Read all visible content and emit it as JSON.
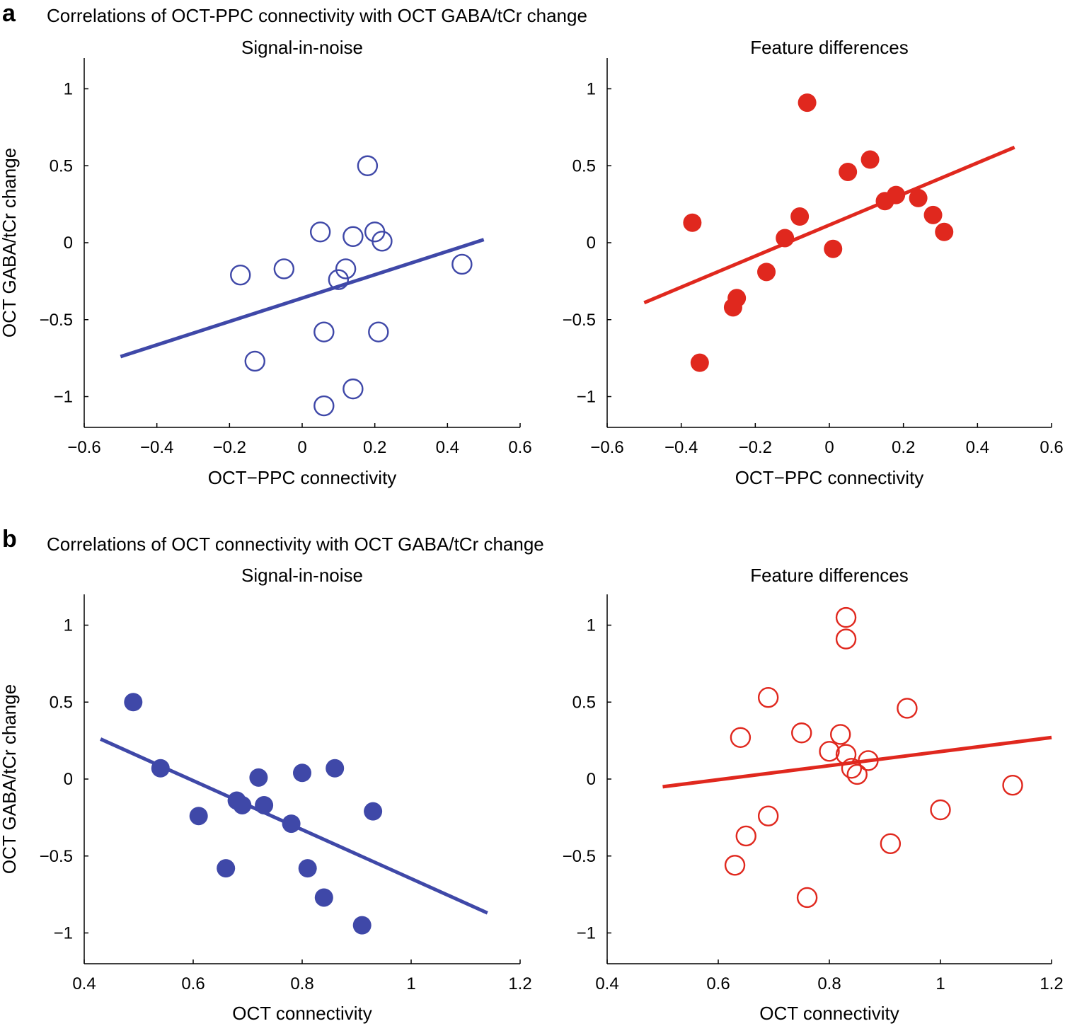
{
  "panels": [
    {
      "letter": "a",
      "title": "Correlations of OCT-PPC connectivity with OCT GABA/tCr change"
    },
    {
      "letter": "b",
      "title": "Correlations of OCT connectivity with OCT GABA/tCr change"
    }
  ],
  "chart_data": [
    {
      "type": "scatter",
      "title": "Signal-in-noise",
      "xlabel": "OCT−PPC connectivity",
      "ylabel": "OCT GABA/tCr change",
      "xlim": [
        -0.6,
        0.6
      ],
      "ylim": [
        -1.2,
        1.2
      ],
      "xticks": [
        -0.6,
        -0.4,
        -0.2,
        0,
        0.2,
        0.4,
        0.6
      ],
      "xtick_labels": [
        "−0.6",
        "−0.4",
        "−0.2",
        "0",
        "0.2",
        "0.4",
        "0.6"
      ],
      "yticks": [
        -1,
        -0.5,
        0,
        0.5,
        1
      ],
      "ytick_labels": [
        "−1",
        "−0.5",
        "0",
        "0.5",
        "1"
      ],
      "color": "#3f48a8",
      "marker": "open",
      "points": [
        {
          "x": 0.18,
          "y": 0.5
        },
        {
          "x": 0.05,
          "y": 0.07
        },
        {
          "x": 0.14,
          "y": 0.04
        },
        {
          "x": 0.2,
          "y": 0.07
        },
        {
          "x": 0.22,
          "y": 0.01
        },
        {
          "x": -0.17,
          "y": -0.21
        },
        {
          "x": -0.05,
          "y": -0.17
        },
        {
          "x": 0.12,
          "y": -0.17
        },
        {
          "x": 0.1,
          "y": -0.24
        },
        {
          "x": 0.44,
          "y": -0.14
        },
        {
          "x": 0.06,
          "y": -0.58
        },
        {
          "x": 0.21,
          "y": -0.58
        },
        {
          "x": -0.13,
          "y": -0.77
        },
        {
          "x": 0.14,
          "y": -0.95
        },
        {
          "x": 0.06,
          "y": -1.06
        }
      ],
      "fit": {
        "x": [
          -0.5,
          0.5
        ],
        "y": [
          -0.74,
          0.02
        ]
      }
    },
    {
      "type": "scatter",
      "title": "Feature differences",
      "xlabel": "OCT−PPC connectivity",
      "ylabel": "",
      "xlim": [
        -0.6,
        0.6
      ],
      "ylim": [
        -1.2,
        1.2
      ],
      "xticks": [
        -0.6,
        -0.4,
        -0.2,
        0,
        0.2,
        0.4,
        0.6
      ],
      "xtick_labels": [
        "−0.6",
        "−0.4",
        "−0.2",
        "0",
        "0.2",
        "0.4",
        "0.6"
      ],
      "yticks": [
        -1,
        -0.5,
        0,
        0.5,
        1
      ],
      "ytick_labels": [
        "−1",
        "−0.5",
        "0",
        "0.5",
        "1"
      ],
      "color": "#e0281e",
      "marker": "filled",
      "points": [
        {
          "x": -0.06,
          "y": 0.91
        },
        {
          "x": 0.11,
          "y": 0.54
        },
        {
          "x": 0.05,
          "y": 0.46
        },
        {
          "x": -0.08,
          "y": 0.17
        },
        {
          "x": -0.12,
          "y": 0.03
        },
        {
          "x": 0.15,
          "y": 0.27
        },
        {
          "x": 0.18,
          "y": 0.31
        },
        {
          "x": 0.24,
          "y": 0.29
        },
        {
          "x": 0.28,
          "y": 0.18
        },
        {
          "x": 0.31,
          "y": 0.07
        },
        {
          "x": -0.37,
          "y": 0.13
        },
        {
          "x": 0.01,
          "y": -0.04
        },
        {
          "x": -0.17,
          "y": -0.19
        },
        {
          "x": -0.25,
          "y": -0.36
        },
        {
          "x": -0.26,
          "y": -0.42
        },
        {
          "x": -0.35,
          "y": -0.78
        }
      ],
      "fit": {
        "x": [
          -0.5,
          0.5
        ],
        "y": [
          -0.39,
          0.62
        ]
      }
    },
    {
      "type": "scatter",
      "title": "Signal-in-noise",
      "xlabel": "OCT connectivity",
      "ylabel": "OCT GABA/tCr change",
      "xlim": [
        0.4,
        1.2
      ],
      "ylim": [
        -1.2,
        1.2
      ],
      "xticks": [
        0.4,
        0.6,
        0.8,
        1.0,
        1.2
      ],
      "xtick_labels": [
        "0.4",
        "0.6",
        "0.8",
        "1",
        "1.2"
      ],
      "yticks": [
        -1,
        -0.5,
        0,
        0.5,
        1
      ],
      "ytick_labels": [
        "−1",
        "−0.5",
        "0",
        "0.5",
        "1"
      ],
      "color": "#3f48a8",
      "marker": "filled",
      "points": [
        {
          "x": 0.49,
          "y": 0.5
        },
        {
          "x": 0.54,
          "y": 0.07
        },
        {
          "x": 0.61,
          "y": -0.24
        },
        {
          "x": 0.66,
          "y": -0.58
        },
        {
          "x": 0.68,
          "y": -0.14
        },
        {
          "x": 0.69,
          "y": -0.17
        },
        {
          "x": 0.72,
          "y": 0.01
        },
        {
          "x": 0.73,
          "y": -0.17
        },
        {
          "x": 0.78,
          "y": -0.29
        },
        {
          "x": 0.8,
          "y": 0.04
        },
        {
          "x": 0.81,
          "y": -0.58
        },
        {
          "x": 0.84,
          "y": -0.77
        },
        {
          "x": 0.86,
          "y": 0.07
        },
        {
          "x": 0.91,
          "y": -0.95
        },
        {
          "x": 0.93,
          "y": -0.21
        }
      ],
      "fit": {
        "x": [
          0.43,
          1.14
        ],
        "y": [
          0.26,
          -0.87
        ]
      }
    },
    {
      "type": "scatter",
      "title": "Feature differences",
      "xlabel": "OCT connectivity",
      "ylabel": "",
      "xlim": [
        0.4,
        1.2
      ],
      "ylim": [
        -1.2,
        1.2
      ],
      "xticks": [
        0.4,
        0.6,
        0.8,
        1.0,
        1.2
      ],
      "xtick_labels": [
        "0.4",
        "0.6",
        "0.8",
        "1",
        "1.2"
      ],
      "yticks": [
        -1,
        -0.5,
        0,
        0.5,
        1
      ],
      "ytick_labels": [
        "−1",
        "−0.5",
        "0",
        "0.5",
        "1"
      ],
      "color": "#e0281e",
      "marker": "open",
      "points": [
        {
          "x": 0.83,
          "y": 1.05
        },
        {
          "x": 0.83,
          "y": 0.91
        },
        {
          "x": 0.69,
          "y": 0.53
        },
        {
          "x": 0.94,
          "y": 0.46
        },
        {
          "x": 0.64,
          "y": 0.27
        },
        {
          "x": 0.75,
          "y": 0.3
        },
        {
          "x": 0.82,
          "y": 0.29
        },
        {
          "x": 0.8,
          "y": 0.18
        },
        {
          "x": 0.83,
          "y": 0.16
        },
        {
          "x": 0.87,
          "y": 0.12
        },
        {
          "x": 0.84,
          "y": 0.07
        },
        {
          "x": 0.85,
          "y": 0.03
        },
        {
          "x": 1.13,
          "y": -0.04
        },
        {
          "x": 1.0,
          "y": -0.2
        },
        {
          "x": 0.69,
          "y": -0.24
        },
        {
          "x": 0.65,
          "y": -0.37
        },
        {
          "x": 0.91,
          "y": -0.42
        },
        {
          "x": 0.63,
          "y": -0.56
        },
        {
          "x": 0.76,
          "y": -0.77
        }
      ],
      "fit": {
        "x": [
          0.5,
          1.2
        ],
        "y": [
          -0.05,
          0.27
        ]
      }
    }
  ]
}
